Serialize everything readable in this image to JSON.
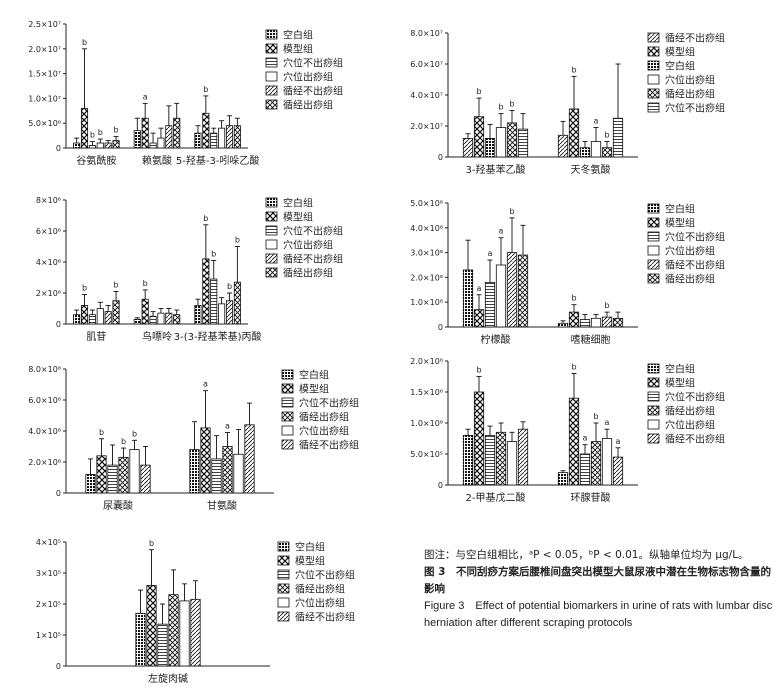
{
  "chart_data": [
    {
      "type": "bar",
      "categories": [
        "谷氨酰胺",
        "赖氨酸",
        "5-羟基-3-吲哚乙酸"
      ],
      "series": [
        {
          "name": "空白组",
          "values": [
            0.1,
            0.35,
            0.3
          ],
          "errors": [
            0.1,
            0.25,
            0.15
          ],
          "sig": [
            "",
            "",
            ""
          ]
        },
        {
          "name": "模型组",
          "values": [
            0.8,
            0.6,
            0.7
          ],
          "errors": [
            1.2,
            0.3,
            0.35
          ],
          "sig": [
            "b",
            "a",
            "b"
          ]
        },
        {
          "name": "穴位不出痧组",
          "values": [
            0.05,
            0.1,
            0.3
          ],
          "errors": [
            0.08,
            0.2,
            0.1
          ],
          "sig": [
            "b",
            "",
            ""
          ]
        },
        {
          "name": "穴位出痧组",
          "values": [
            0.1,
            0.2,
            0.4
          ],
          "errors": [
            0.08,
            0.2,
            0.15
          ],
          "sig": [
            "b",
            "",
            ""
          ]
        },
        {
          "name": "循经不出痧组",
          "values": [
            0.1,
            0.45,
            0.45
          ],
          "errors": [
            0.05,
            0.4,
            0.2
          ],
          "sig": [
            "",
            "",
            ""
          ]
        },
        {
          "name": "循经出痧组",
          "values": [
            0.15,
            0.6,
            0.45
          ],
          "errors": [
            0.08,
            0.3,
            0.15
          ],
          "sig": [
            "b",
            "",
            ""
          ]
        }
      ],
      "ytick_labels": [
        "0",
        "5.0×10⁶",
        "1.0×10⁷",
        "1.5×10⁷",
        "2.0×10⁷",
        "2.5×10⁷"
      ],
      "ylim": [
        0,
        2.5
      ]
    },
    {
      "type": "bar",
      "categories": [
        "3-羟基苯乙酸",
        "天冬氨酸"
      ],
      "series": [
        {
          "name": "循经不出痧组",
          "values": [
            1.2,
            1.4
          ],
          "errors": [
            0.3,
            0.9
          ],
          "sig": [
            "",
            ""
          ]
        },
        {
          "name": "模型组",
          "values": [
            2.6,
            3.1
          ],
          "errors": [
            1.2,
            2.1
          ],
          "sig": [
            "b",
            "b"
          ]
        },
        {
          "name": "空白组",
          "values": [
            1.2,
            0.6
          ],
          "errors": [
            0.9,
            0.4
          ],
          "sig": [
            "",
            ""
          ]
        },
        {
          "name": "穴位出痧组",
          "values": [
            1.9,
            1.0
          ],
          "errors": [
            0.9,
            0.9
          ],
          "sig": [
            "b",
            "a"
          ]
        },
        {
          "name": "循经出痧组",
          "values": [
            2.2,
            0.6
          ],
          "errors": [
            0.8,
            0.4
          ],
          "sig": [
            "b",
            "b"
          ]
        },
        {
          "name": "穴位不出痧组",
          "values": [
            1.8,
            2.5
          ],
          "errors": [
            1.0,
            3.5
          ],
          "sig": [
            "",
            ""
          ]
        }
      ],
      "ytick_labels": [
        "0",
        "2.0×10⁷",
        "4.0×10⁷",
        "6.0×10⁷",
        "8.0×10⁷"
      ],
      "ylim": [
        0,
        8
      ]
    },
    {
      "type": "bar",
      "categories": [
        "肌苷",
        "鸟嘌呤",
        "3-(3-羟基苯基)丙酸"
      ],
      "series": [
        {
          "name": "空白组",
          "values": [
            0.6,
            0.3,
            1.2
          ],
          "errors": [
            0.3,
            0.1,
            0.4
          ],
          "sig": [
            "",
            "",
            ""
          ]
        },
        {
          "name": "模型组",
          "values": [
            1.2,
            1.6,
            4.2
          ],
          "errors": [
            0.7,
            0.6,
            2.2
          ],
          "sig": [
            "b",
            "b",
            "b"
          ]
        },
        {
          "name": "穴位不出痧组",
          "values": [
            0.6,
            0.5,
            2.9
          ],
          "errors": [
            0.3,
            0.3,
            1.2
          ],
          "sig": [
            "",
            "",
            "b"
          ]
        },
        {
          "name": "穴位出痧组",
          "values": [
            1.0,
            0.7,
            1.3
          ],
          "errors": [
            0.4,
            0.3,
            0.4
          ],
          "sig": [
            "",
            "",
            ""
          ]
        },
        {
          "name": "循经不出痧组",
          "values": [
            0.8,
            0.7,
            1.5
          ],
          "errors": [
            0.4,
            0.3,
            0.5
          ],
          "sig": [
            "",
            "",
            "b"
          ]
        },
        {
          "name": "循经出痧组",
          "values": [
            1.5,
            0.6,
            2.7
          ],
          "errors": [
            0.6,
            0.3,
            2.3
          ],
          "sig": [
            "b",
            "",
            "b"
          ]
        }
      ],
      "ytick_labels": [
        "0",
        "2×10⁶",
        "4×10⁶",
        "6×10⁶",
        "8×10⁶"
      ],
      "ylim": [
        0,
        8
      ]
    },
    {
      "type": "bar",
      "categories": [
        "柠檬酸",
        "嗜糖细胞"
      ],
      "series": [
        {
          "name": "空白组",
          "values": [
            2.3,
            0.15
          ],
          "errors": [
            1.2,
            0.1
          ],
          "sig": [
            "",
            ""
          ]
        },
        {
          "name": "模型组",
          "values": [
            0.7,
            0.6
          ],
          "errors": [
            0.6,
            0.3
          ],
          "sig": [
            "a",
            "b"
          ]
        },
        {
          "name": "穴位不出痧组",
          "values": [
            1.8,
            0.3
          ],
          "errors": [
            0.9,
            0.2
          ],
          "sig": [
            "a",
            ""
          ]
        },
        {
          "name": "穴位出痧组",
          "values": [
            2.5,
            0.35
          ],
          "errors": [
            1.1,
            0.15
          ],
          "sig": [
            "a",
            ""
          ]
        },
        {
          "name": "循经不出痧组",
          "values": [
            3.0,
            0.4
          ],
          "errors": [
            1.4,
            0.2
          ],
          "sig": [
            "b",
            "b"
          ]
        },
        {
          "name": "循经出痧组",
          "values": [
            2.9,
            0.35
          ],
          "errors": [
            1.2,
            0.25
          ],
          "sig": [
            "",
            ""
          ]
        }
      ],
      "ytick_labels": [
        "0",
        "1.0×10⁸",
        "2.0×10⁸",
        "3.0×10⁸",
        "4.0×10⁸",
        "5.0×10⁸"
      ],
      "ylim": [
        0,
        5
      ]
    },
    {
      "type": "bar",
      "categories": [
        "尿囊酸",
        "甘氨酸"
      ],
      "series": [
        {
          "name": "空白组",
          "values": [
            1.2,
            2.8
          ],
          "errors": [
            1.0,
            1.8
          ],
          "sig": [
            "",
            ""
          ]
        },
        {
          "name": "模型组",
          "values": [
            2.4,
            4.2
          ],
          "errors": [
            1.1,
            2.4
          ],
          "sig": [
            "b",
            "a"
          ]
        },
        {
          "name": "穴位不出痧组",
          "values": [
            1.8,
            2.2
          ],
          "errors": [
            1.3,
            1.5
          ],
          "sig": [
            "",
            ""
          ]
        },
        {
          "name": "循经出痧组",
          "values": [
            2.3,
            3.0
          ],
          "errors": [
            0.6,
            0.9
          ],
          "sig": [
            "b",
            "a"
          ]
        },
        {
          "name": "穴位出痧组",
          "values": [
            2.8,
            2.5
          ],
          "errors": [
            0.6,
            1.6
          ],
          "sig": [
            "b",
            ""
          ]
        },
        {
          "name": "循经不出痧组",
          "values": [
            1.8,
            4.4
          ],
          "errors": [
            1.2,
            1.4
          ],
          "sig": [
            "",
            ""
          ]
        }
      ],
      "ytick_labels": [
        "0",
        "2.0×10⁸",
        "4.0×10⁸",
        "6.0×10⁸",
        "8.0×10⁸"
      ],
      "ylim": [
        0,
        8
      ]
    },
    {
      "type": "bar",
      "categories": [
        "2-甲基戊二酸",
        "环腺苷酸"
      ],
      "series": [
        {
          "name": "空白组",
          "values": [
            0.8,
            0.2
          ],
          "errors": [
            0.1,
            0.03
          ],
          "sig": [
            "",
            ""
          ]
        },
        {
          "name": "模型组",
          "values": [
            1.5,
            1.4
          ],
          "errors": [
            0.25,
            0.4
          ],
          "sig": [
            "b",
            "b"
          ]
        },
        {
          "name": "穴位不出痧组",
          "values": [
            0.8,
            0.5
          ],
          "errors": [
            0.15,
            0.15
          ],
          "sig": [
            "",
            "a"
          ]
        },
        {
          "name": "循经出痧组",
          "values": [
            0.85,
            0.7
          ],
          "errors": [
            0.15,
            0.3
          ],
          "sig": [
            "",
            "b"
          ]
        },
        {
          "name": "穴位出痧组",
          "values": [
            0.7,
            0.75
          ],
          "errors": [
            0.15,
            0.15
          ],
          "sig": [
            "",
            "a"
          ]
        },
        {
          "name": "循经不出痧组",
          "values": [
            0.9,
            0.45
          ],
          "errors": [
            0.12,
            0.15
          ],
          "sig": [
            "",
            "a"
          ]
        }
      ],
      "ytick_labels": [
        "0",
        "5.0×10⁵",
        "1.0×10⁶",
        "1.5×10⁶",
        "2.0×10⁶"
      ],
      "ylim": [
        0,
        2
      ]
    },
    {
      "type": "bar",
      "categories": [
        "左旋肉碱"
      ],
      "series": [
        {
          "name": "空白组",
          "values": [
            1.7
          ],
          "errors": [
            0.75
          ],
          "sig": [
            ""
          ]
        },
        {
          "name": "模型组",
          "values": [
            2.6
          ],
          "errors": [
            1.15
          ],
          "sig": [
            "b"
          ]
        },
        {
          "name": "穴位不出痧组",
          "values": [
            1.35
          ],
          "errors": [
            0.65
          ],
          "sig": [
            ""
          ]
        },
        {
          "name": "循经出痧组",
          "values": [
            2.3
          ],
          "errors": [
            0.8
          ],
          "sig": [
            ""
          ]
        },
        {
          "name": "穴位出痧组",
          "values": [
            2.1
          ],
          "errors": [
            0.55
          ],
          "sig": [
            ""
          ]
        },
        {
          "name": "循经不出痧组",
          "values": [
            2.15
          ],
          "errors": [
            0.6
          ],
          "sig": [
            ""
          ]
        }
      ],
      "ytick_labels": [
        "0",
        "1×10⁵",
        "2×10⁵",
        "3×10⁵",
        "4×10⁵"
      ],
      "ylim": [
        0,
        4
      ]
    }
  ],
  "caption": {
    "note": "图注：与空白组相比，ᵃP < 0.05，ᵇP < 0.01。纵轴单位均为 μg/L。",
    "title_cn": "图 3　不同刮痧方案后腰椎间盘突出模型大鼠尿液中潜在生物标志物含量的影响",
    "title_en": "Figure 3　Effect of potential biomarkers in urine of rats with lumbar disc herniation after different scraping protocols"
  }
}
